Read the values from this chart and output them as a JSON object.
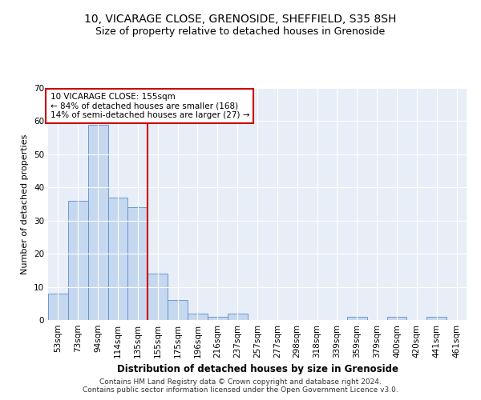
{
  "title_line1": "10, VICARAGE CLOSE, GRENOSIDE, SHEFFIELD, S35 8SH",
  "title_line2": "Size of property relative to detached houses in Grenoside",
  "xlabel": "Distribution of detached houses by size in Grenoside",
  "ylabel": "Number of detached properties",
  "categories": [
    "53sqm",
    "73sqm",
    "94sqm",
    "114sqm",
    "135sqm",
    "155sqm",
    "175sqm",
    "196sqm",
    "216sqm",
    "237sqm",
    "257sqm",
    "277sqm",
    "298sqm",
    "318sqm",
    "339sqm",
    "359sqm",
    "379sqm",
    "400sqm",
    "420sqm",
    "441sqm",
    "461sqm"
  ],
  "values": [
    8,
    36,
    59,
    37,
    34,
    14,
    6,
    2,
    1,
    2,
    0,
    0,
    0,
    0,
    0,
    1,
    0,
    1,
    0,
    1,
    0
  ],
  "bar_color": "#c5d8f0",
  "bar_edge_color": "#5b8ec9",
  "vline_color": "#cc0000",
  "annotation_text": "10 VICARAGE CLOSE: 155sqm\n← 84% of detached houses are smaller (168)\n14% of semi-detached houses are larger (27) →",
  "annotation_box_color": "#ffffff",
  "annotation_box_edge": "#cc0000",
  "ylim": [
    0,
    70
  ],
  "yticks": [
    0,
    10,
    20,
    30,
    40,
    50,
    60,
    70
  ],
  "background_color": "#e8eef7",
  "footer_line1": "Contains HM Land Registry data © Crown copyright and database right 2024.",
  "footer_line2": "Contains public sector information licensed under the Open Government Licence v3.0.",
  "title_fontsize": 10,
  "subtitle_fontsize": 9,
  "tick_fontsize": 7.5,
  "ylabel_fontsize": 8,
  "xlabel_fontsize": 8.5,
  "annot_fontsize": 7.5,
  "footer_fontsize": 6.5
}
